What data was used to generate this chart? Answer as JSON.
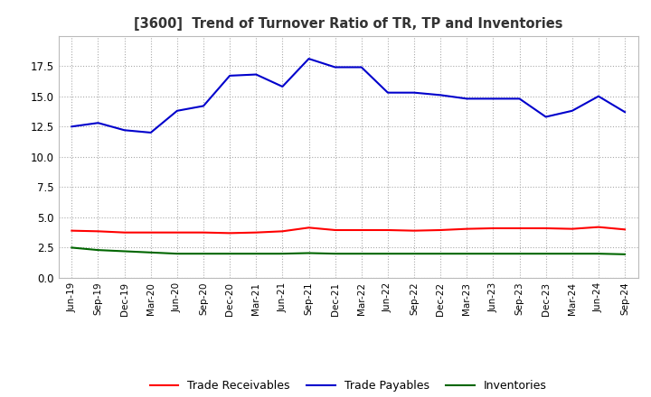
{
  "title": "[3600]  Trend of Turnover Ratio of TR, TP and Inventories",
  "labels": [
    "Jun-19",
    "Sep-19",
    "Dec-19",
    "Mar-20",
    "Jun-20",
    "Sep-20",
    "Dec-20",
    "Mar-21",
    "Jun-21",
    "Sep-21",
    "Dec-21",
    "Mar-22",
    "Jun-22",
    "Sep-22",
    "Dec-22",
    "Mar-23",
    "Jun-23",
    "Sep-23",
    "Dec-23",
    "Mar-24",
    "Jun-24",
    "Sep-24"
  ],
  "trade_receivables": [
    3.9,
    3.85,
    3.75,
    3.75,
    3.75,
    3.75,
    3.7,
    3.75,
    3.85,
    4.15,
    3.95,
    3.95,
    3.95,
    3.9,
    3.95,
    4.05,
    4.1,
    4.1,
    4.1,
    4.05,
    4.2,
    4.0
  ],
  "trade_payables": [
    12.5,
    12.8,
    12.2,
    12.0,
    13.8,
    14.2,
    16.7,
    16.8,
    15.8,
    18.1,
    17.4,
    17.4,
    15.3,
    15.3,
    15.1,
    14.8,
    14.8,
    14.8,
    13.3,
    13.8,
    15.0,
    13.7
  ],
  "inventories": [
    2.5,
    2.3,
    2.2,
    2.1,
    2.0,
    2.0,
    2.0,
    2.0,
    2.0,
    2.05,
    2.0,
    2.0,
    2.0,
    2.0,
    2.0,
    2.0,
    2.0,
    2.0,
    2.0,
    2.0,
    2.0,
    1.95
  ],
  "ylim": [
    0,
    20
  ],
  "yticks": [
    0.0,
    2.5,
    5.0,
    7.5,
    10.0,
    12.5,
    15.0,
    17.5
  ],
  "colors": {
    "trade_receivables": "#ff0000",
    "trade_payables": "#0000cc",
    "inventories": "#006600"
  },
  "legend_labels": [
    "Trade Receivables",
    "Trade Payables",
    "Inventories"
  ],
  "background_color": "#ffffff",
  "grid_color": "#aaaaaa"
}
